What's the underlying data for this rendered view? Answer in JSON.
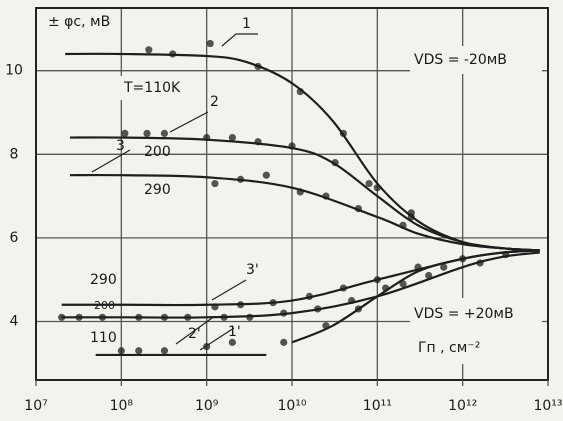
{
  "chart_data": {
    "type": "line",
    "y_label": "± φc, мВ",
    "annotations": [
      "T=110K",
      "VDS = -20мВ",
      "VDS = +20мВ",
      "Гп , см⁻²",
      "200",
      "290",
      "290",
      "200",
      "110"
    ],
    "xscale": "log",
    "grid": true,
    "xlim": [
      10000000.0,
      10000000000000.0
    ],
    "xticks": [
      {
        "value": 10000000.0,
        "label": "10⁷"
      },
      {
        "value": 100000000.0,
        "label": "10⁸"
      },
      {
        "value": 1000000000.0,
        "label": "10⁹"
      },
      {
        "value": 10000000000.0,
        "label": "10¹⁰"
      },
      {
        "value": 100000000000.0,
        "label": "10¹¹"
      },
      {
        "value": 1000000000000.0,
        "label": "10¹²"
      },
      {
        "value": 10000000000000.0,
        "label": "10¹³"
      }
    ],
    "ylim": [
      2.6,
      11.5
    ],
    "yticks": [
      4,
      6,
      8,
      10
    ],
    "series": [
      {
        "name": "1",
        "color": "#1e1e1e",
        "x": [
          22000000.0,
          100000000.0,
          1000000000.0,
          3000000000.0,
          10000000000.0,
          30000000000.0,
          100000000000.0,
          300000000000.0,
          1000000000000.0,
          3000000000000.0,
          8000000000000.0
        ],
        "values": [
          10.4,
          10.4,
          10.35,
          10.2,
          9.7,
          8.8,
          7.3,
          6.4,
          5.9,
          5.75,
          5.7
        ],
        "points_x": [
          210000000.0,
          400000000.0,
          1100000000.0,
          4000000000.0,
          12500000000.0,
          40000000000.0,
          100000000000.0,
          250000000000.0
        ],
        "points_y": [
          10.5,
          10.4,
          10.65,
          10.1,
          9.5,
          8.5,
          7.2,
          6.5
        ]
      },
      {
        "name": "2",
        "color": "#1e1e1e",
        "x": [
          25000000.0,
          100000000.0,
          1000000000.0,
          10000000000.0,
          30000000000.0,
          100000000000.0,
          300000000000.0,
          1000000000000.0,
          3000000000000.0,
          8000000000000.0
        ],
        "values": [
          8.4,
          8.4,
          8.35,
          8.15,
          7.8,
          7.0,
          6.3,
          5.9,
          5.75,
          5.7
        ],
        "points_x": [
          110000000.0,
          200000000.0,
          320000000.0,
          1000000000.0,
          2000000000.0,
          4000000000.0,
          10000000000.0,
          32000000000.0,
          80000000000.0,
          250000000000.0
        ],
        "points_y": [
          8.5,
          8.5,
          8.5,
          8.4,
          8.4,
          8.3,
          8.2,
          7.8,
          7.3,
          6.6
        ]
      },
      {
        "name": "3",
        "color": "#1e1e1e",
        "x": [
          25000000.0,
          100000000.0,
          1000000000.0,
          10000000000.0,
          100000000000.0,
          300000000000.0,
          1000000000000.0,
          3000000000000.0,
          8000000000000.0
        ],
        "values": [
          7.5,
          7.5,
          7.45,
          7.2,
          6.5,
          6.1,
          5.85,
          5.75,
          5.7
        ],
        "points_x": [
          1250000000.0,
          2500000000.0,
          5000000000.0,
          12500000000.0,
          25000000000.0,
          60000000000.0,
          200000000000.0
        ],
        "points_y": [
          7.3,
          7.4,
          7.5,
          7.1,
          7.0,
          6.7,
          6.3
        ]
      },
      {
        "name": "3'",
        "color": "#1e1e1e",
        "x": [
          20000000.0,
          100000000.0,
          1000000000.0,
          10000000000.0,
          100000000000.0,
          1000000000000.0,
          3000000000000.0,
          8000000000000.0
        ],
        "values": [
          4.4,
          4.4,
          4.4,
          4.5,
          5.0,
          5.5,
          5.65,
          5.7
        ],
        "points_x": [
          1250000000.0,
          2500000000.0,
          6000000000.0,
          16000000000.0,
          40000000000.0,
          100000000000.0,
          300000000000.0,
          1000000000000.0
        ],
        "points_y": [
          4.35,
          4.4,
          4.45,
          4.6,
          4.8,
          5.0,
          5.3,
          5.5
        ]
      },
      {
        "name": "2'",
        "color": "#1e1e1e",
        "x": [
          20000000.0,
          100000000.0,
          1000000000.0,
          10000000000.0,
          100000000000.0,
          1000000000000.0,
          3000000000000.0,
          8000000000000.0
        ],
        "values": [
          4.1,
          4.1,
          4.1,
          4.2,
          4.6,
          5.3,
          5.55,
          5.65
        ],
        "points_x": [
          20000000.0,
          32000000.0,
          60000000.0,
          160000000.0,
          320000000.0,
          600000000.0,
          1600000000.0,
          3200000000.0,
          8000000000.0,
          20000000000.0,
          50000000000.0,
          125000000000.0,
          400000000000.0,
          1600000000000.0
        ],
        "points_y": [
          4.1,
          4.1,
          4.1,
          4.1,
          4.1,
          4.1,
          4.1,
          4.1,
          4.2,
          4.3,
          4.5,
          4.8,
          5.1,
          5.4
        ]
      },
      {
        "name": "1'",
        "color": "#1e1e1e",
        "x": [
          50000000.0,
          100000000.0,
          1000000000.0,
          5000000000.0,
          6000000000.0,
          10000000000.0,
          30000000000.0,
          100000000000.0,
          300000000000.0,
          1000000000000.0,
          3000000000000.0,
          8000000000000.0
        ],
        "values": [
          3.2,
          3.2,
          3.2,
          3.2,
          null,
          3.5,
          3.9,
          4.6,
          5.2,
          5.5,
          5.65,
          5.7
        ],
        "points_x": [
          100000000.0,
          160000000.0,
          320000000.0,
          1000000000.0,
          2000000000.0,
          8000000000.0,
          25000000000.0,
          60000000000.0,
          200000000000.0,
          600000000000.0,
          3200000000000.0
        ],
        "points_y": [
          3.3,
          3.3,
          3.3,
          3.4,
          3.5,
          3.5,
          3.9,
          4.3,
          4.9,
          5.3,
          5.6
        ]
      }
    ]
  }
}
